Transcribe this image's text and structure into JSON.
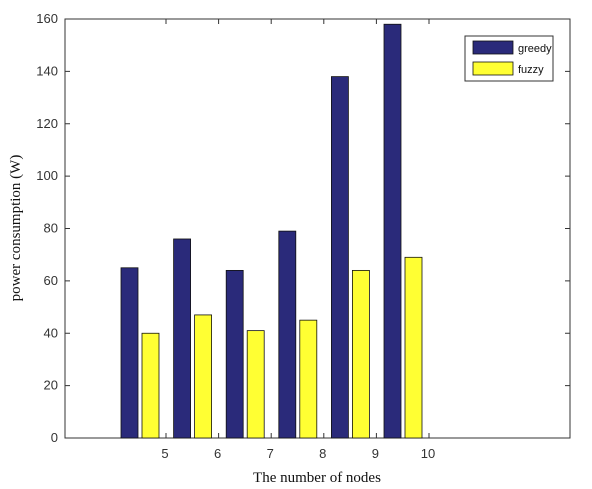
{
  "chart_data": {
    "type": "bar",
    "title": "",
    "xlabel": "The number of nodes",
    "ylabel": "power consumption (W)",
    "categories": [
      "5",
      "6",
      "7",
      "8",
      "9",
      "10"
    ],
    "ylim": [
      0,
      160
    ],
    "yticks": [
      0,
      20,
      40,
      60,
      80,
      100,
      120,
      140,
      160
    ],
    "grid": false,
    "legend_position": "top-right",
    "series": [
      {
        "name": "greedy",
        "color": "#2a2a7a",
        "values": [
          65,
          76,
          64,
          79,
          138,
          158
        ]
      },
      {
        "name": "fuzzy",
        "color": "#ffff33",
        "values": [
          40,
          47,
          41,
          45,
          64,
          69
        ]
      }
    ]
  }
}
